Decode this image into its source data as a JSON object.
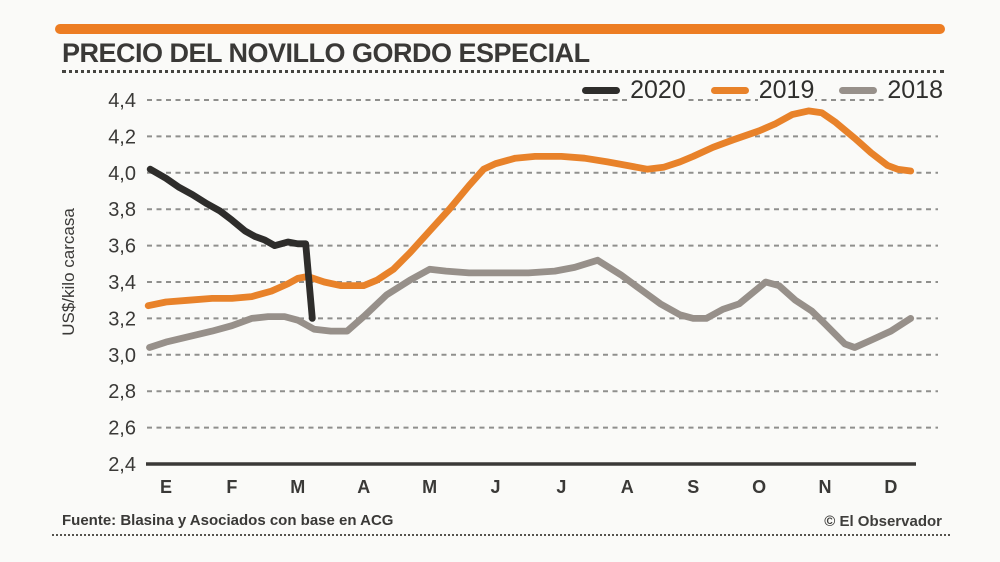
{
  "title": "PRECIO DEL NOVILLO GORDO ESPECIAL",
  "footer": {
    "source": "Fuente: Blasina y Asociados con base en ACG",
    "credit": "© El Observador"
  },
  "colors": {
    "accent_orange": "#ED7D23",
    "line_2020": "#2E2D2B",
    "line_2019": "#E8822A",
    "line_2018": "#97908A",
    "grid": "#8F8F8D",
    "axis": "#3A3937",
    "text": "#3A3937",
    "background": "#FAFAF8"
  },
  "chart_data": {
    "type": "line",
    "title": "PRECIO DEL NOVILLO GORDO ESPECIAL",
    "ylabel": "US$/kilo carcasa",
    "xlabel": "",
    "ylim": [
      2.4,
      4.4
    ],
    "ytick_interval": 0.2,
    "ytick_labels": [
      "4,4",
      "4,2",
      "4,0",
      "3,8",
      "3,6",
      "3,4",
      "3,2",
      "3,0",
      "2,8",
      "2,6",
      "2,4"
    ],
    "x_months": [
      "E",
      "F",
      "M",
      "A",
      "M",
      "J",
      "J",
      "A",
      "S",
      "O",
      "N",
      "D"
    ],
    "x_unit": "month_index (0=E enero ... 11=D diciembre, fractional = intra-month)",
    "grid": "horizontal dashed",
    "legend_position": "top-right",
    "series": [
      {
        "name": "2020",
        "color": "#2E2D2B",
        "points": [
          [
            -0.24,
            4.02
          ],
          [
            0,
            3.97
          ],
          [
            0.2,
            3.92
          ],
          [
            0.4,
            3.88
          ],
          [
            0.62,
            3.83
          ],
          [
            0.82,
            3.79
          ],
          [
            1.0,
            3.74
          ],
          [
            1.2,
            3.68
          ],
          [
            1.35,
            3.65
          ],
          [
            1.5,
            3.63
          ],
          [
            1.65,
            3.6
          ],
          [
            1.85,
            3.62
          ],
          [
            2.0,
            3.61
          ],
          [
            2.12,
            3.61
          ],
          [
            2.22,
            3.2
          ]
        ]
      },
      {
        "name": "2019",
        "color": "#E8822A",
        "points": [
          [
            -0.27,
            3.27
          ],
          [
            0,
            3.29
          ],
          [
            0.35,
            3.3
          ],
          [
            0.7,
            3.31
          ],
          [
            1.0,
            3.31
          ],
          [
            1.3,
            3.32
          ],
          [
            1.6,
            3.35
          ],
          [
            1.85,
            3.39
          ],
          [
            2.0,
            3.42
          ],
          [
            2.15,
            3.43
          ],
          [
            2.4,
            3.4
          ],
          [
            2.65,
            3.38
          ],
          [
            3.0,
            3.38
          ],
          [
            3.2,
            3.41
          ],
          [
            3.45,
            3.47
          ],
          [
            3.7,
            3.56
          ],
          [
            4.0,
            3.68
          ],
          [
            4.3,
            3.8
          ],
          [
            4.6,
            3.93
          ],
          [
            4.82,
            4.02
          ],
          [
            5.0,
            4.05
          ],
          [
            5.3,
            4.08
          ],
          [
            5.6,
            4.09
          ],
          [
            6.0,
            4.09
          ],
          [
            6.35,
            4.08
          ],
          [
            6.7,
            4.06
          ],
          [
            7.0,
            4.04
          ],
          [
            7.3,
            4.02
          ],
          [
            7.55,
            4.03
          ],
          [
            7.8,
            4.06
          ],
          [
            8.0,
            4.09
          ],
          [
            8.3,
            4.14
          ],
          [
            8.6,
            4.18
          ],
          [
            9.0,
            4.23
          ],
          [
            9.25,
            4.27
          ],
          [
            9.5,
            4.32
          ],
          [
            9.75,
            4.34
          ],
          [
            9.95,
            4.33
          ],
          [
            10.15,
            4.28
          ],
          [
            10.45,
            4.19
          ],
          [
            10.7,
            4.11
          ],
          [
            10.95,
            4.04
          ],
          [
            11.1,
            4.02
          ],
          [
            11.3,
            4.01
          ]
        ]
      },
      {
        "name": "2018",
        "color": "#97908A",
        "points": [
          [
            -0.25,
            3.04
          ],
          [
            0,
            3.07
          ],
          [
            0.35,
            3.1
          ],
          [
            0.7,
            3.13
          ],
          [
            1.0,
            3.16
          ],
          [
            1.3,
            3.2
          ],
          [
            1.55,
            3.21
          ],
          [
            1.8,
            3.21
          ],
          [
            2.0,
            3.19
          ],
          [
            2.25,
            3.14
          ],
          [
            2.5,
            3.13
          ],
          [
            2.75,
            3.13
          ],
          [
            3.0,
            3.21
          ],
          [
            3.35,
            3.33
          ],
          [
            3.7,
            3.41
          ],
          [
            4.0,
            3.47
          ],
          [
            4.25,
            3.46
          ],
          [
            4.6,
            3.45
          ],
          [
            5.0,
            3.45
          ],
          [
            5.5,
            3.45
          ],
          [
            5.9,
            3.46
          ],
          [
            6.2,
            3.48
          ],
          [
            6.55,
            3.52
          ],
          [
            6.9,
            3.44
          ],
          [
            7.2,
            3.36
          ],
          [
            7.5,
            3.28
          ],
          [
            7.8,
            3.22
          ],
          [
            8.0,
            3.2
          ],
          [
            8.2,
            3.2
          ],
          [
            8.45,
            3.25
          ],
          [
            8.7,
            3.28
          ],
          [
            9.0,
            3.37
          ],
          [
            9.1,
            3.4
          ],
          [
            9.3,
            3.38
          ],
          [
            9.55,
            3.3
          ],
          [
            9.8,
            3.24
          ],
          [
            10.0,
            3.17
          ],
          [
            10.3,
            3.06
          ],
          [
            10.45,
            3.04
          ],
          [
            10.7,
            3.08
          ],
          [
            11.0,
            3.13
          ],
          [
            11.3,
            3.2
          ]
        ]
      }
    ]
  }
}
